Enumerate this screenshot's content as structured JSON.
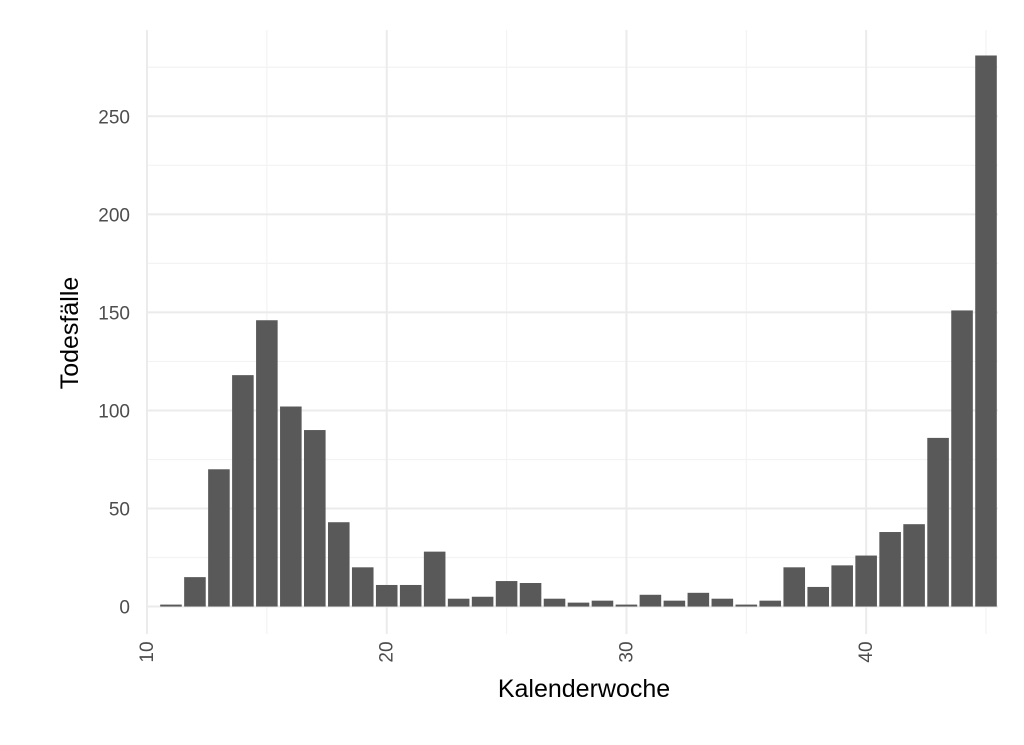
{
  "chart_data": {
    "type": "bar",
    "xlabel": "Kalenderwoche",
    "ylabel": "Todesfälle",
    "xlim": [
      10,
      45.5
    ],
    "ylim": [
      -14,
      294
    ],
    "x_ticks": [
      10,
      20,
      30,
      40
    ],
    "y_ticks": [
      0,
      50,
      100,
      150,
      200,
      250
    ],
    "grid": true,
    "bar_color": "#595959",
    "x": [
      11,
      12,
      13,
      14,
      15,
      16,
      17,
      18,
      19,
      20,
      21,
      22,
      23,
      24,
      25,
      26,
      27,
      28,
      29,
      30,
      31,
      32,
      33,
      34,
      35,
      36,
      37,
      38,
      39,
      40,
      41,
      42,
      43,
      44,
      45
    ],
    "values": [
      1,
      15,
      70,
      118,
      146,
      102,
      90,
      43,
      20,
      11,
      11,
      28,
      4,
      5,
      13,
      12,
      4,
      2,
      3,
      1,
      6,
      3,
      7,
      4,
      1,
      3,
      20,
      10,
      21,
      26,
      38,
      42,
      86,
      151,
      281
    ]
  }
}
